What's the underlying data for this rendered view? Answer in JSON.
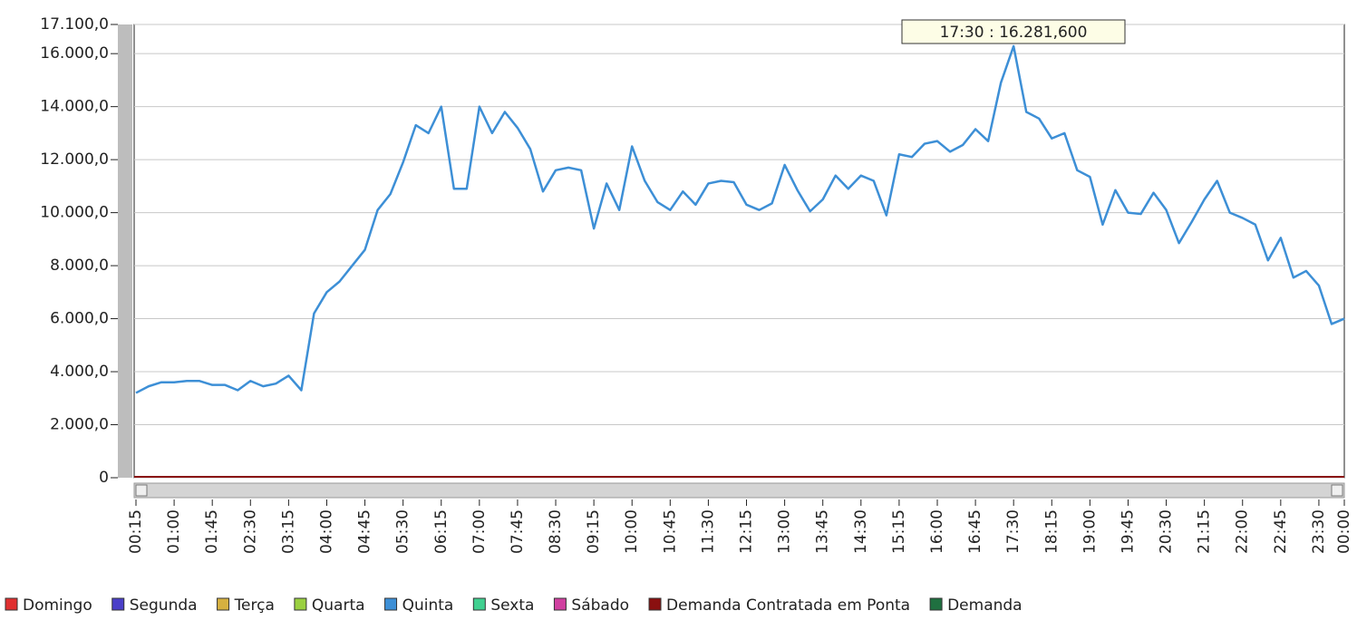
{
  "chart_data": {
    "type": "line",
    "annotation": "17:30 : 16.281,600",
    "categories": [
      "00:15",
      null,
      null,
      "01:00",
      null,
      null,
      "01:45",
      null,
      null,
      "02:30",
      null,
      null,
      "03:15",
      null,
      null,
      "04:00",
      null,
      null,
      "04:45",
      null,
      null,
      "05:30",
      null,
      null,
      "06:15",
      null,
      null,
      "07:00",
      null,
      null,
      "07:45",
      null,
      null,
      "08:30",
      null,
      null,
      "09:15",
      null,
      null,
      "10:00",
      null,
      null,
      "10:45",
      null,
      null,
      "11:30",
      null,
      null,
      "12:15",
      null,
      null,
      "13:00",
      null,
      null,
      "13:45",
      null,
      null,
      "14:30",
      null,
      null,
      "15:15",
      null,
      null,
      "16:00",
      null,
      null,
      "16:45",
      null,
      null,
      "17:30",
      null,
      null,
      "18:15",
      null,
      null,
      "19:00",
      null,
      null,
      "19:45",
      null,
      null,
      "20:30",
      null,
      null,
      "21:15",
      null,
      null,
      "22:00",
      null,
      null,
      "22:45",
      null,
      null,
      "23:30",
      null,
      "00:00"
    ],
    "series": [
      {
        "name": "Quinta",
        "color": "#3d8fd6",
        "values": [
          3200,
          3450,
          3600,
          3600,
          3650,
          3650,
          3500,
          3500,
          3300,
          3650,
          3450,
          3550,
          3850,
          3300,
          6200,
          7000,
          7400,
          8000,
          8600,
          10100,
          10700,
          11900,
          13300,
          13000,
          14000,
          10900,
          10900,
          14000,
          13000,
          13800,
          13200,
          12400,
          10800,
          11600,
          11700,
          11600,
          9400,
          11100,
          10100,
          12500,
          11200,
          10400,
          10100,
          10800,
          10300,
          11100,
          11200,
          11150,
          10300,
          10100,
          10350,
          11800,
          10850,
          10050,
          10500,
          11400,
          10900,
          11400,
          11200,
          9900,
          12200,
          12100,
          12600,
          12700,
          12300,
          12550,
          13150,
          12700,
          14900,
          16281.6,
          13800,
          13550,
          12800,
          13000,
          11600,
          11350,
          9550,
          10850,
          10000,
          9950,
          10750,
          10100,
          8850,
          9650,
          10500,
          11200,
          10000,
          9800,
          9550,
          8200,
          9050,
          7550,
          7800,
          7250,
          5800,
          6000
        ]
      }
    ],
    "legend": [
      {
        "name": "Domingo",
        "color": "#e03030"
      },
      {
        "name": "Segunda",
        "color": "#4a3fc8"
      },
      {
        "name": "Terça",
        "color": "#d6b040"
      },
      {
        "name": "Quarta",
        "color": "#9ad040"
      },
      {
        "name": "Quinta",
        "color": "#3d8fd6"
      },
      {
        "name": "Sexta",
        "color": "#40d090"
      },
      {
        "name": "Sábado",
        "color": "#d040a0"
      },
      {
        "name": "Demanda Contratada em Ponta",
        "color": "#8a1010"
      },
      {
        "name": "Demanda",
        "color": "#1f7040"
      }
    ],
    "ylim": [
      0,
      17100
    ],
    "yticks": [
      0,
      {
        "value": 2000,
        "label": "2.000,0"
      },
      {
        "value": 4000,
        "label": "4.000,0"
      },
      {
        "value": 6000,
        "label": "6.000,0"
      },
      {
        "value": 8000,
        "label": "8.000,0"
      },
      {
        "value": 10000,
        "label": "10.000,0"
      },
      {
        "value": 12000,
        "label": "12.000,0"
      },
      {
        "value": 14000,
        "label": "14.000,0"
      },
      {
        "value": 16000,
        "label": "16.000,0"
      },
      {
        "value": 17100,
        "label": "17.100,0"
      }
    ],
    "grid": true
  }
}
